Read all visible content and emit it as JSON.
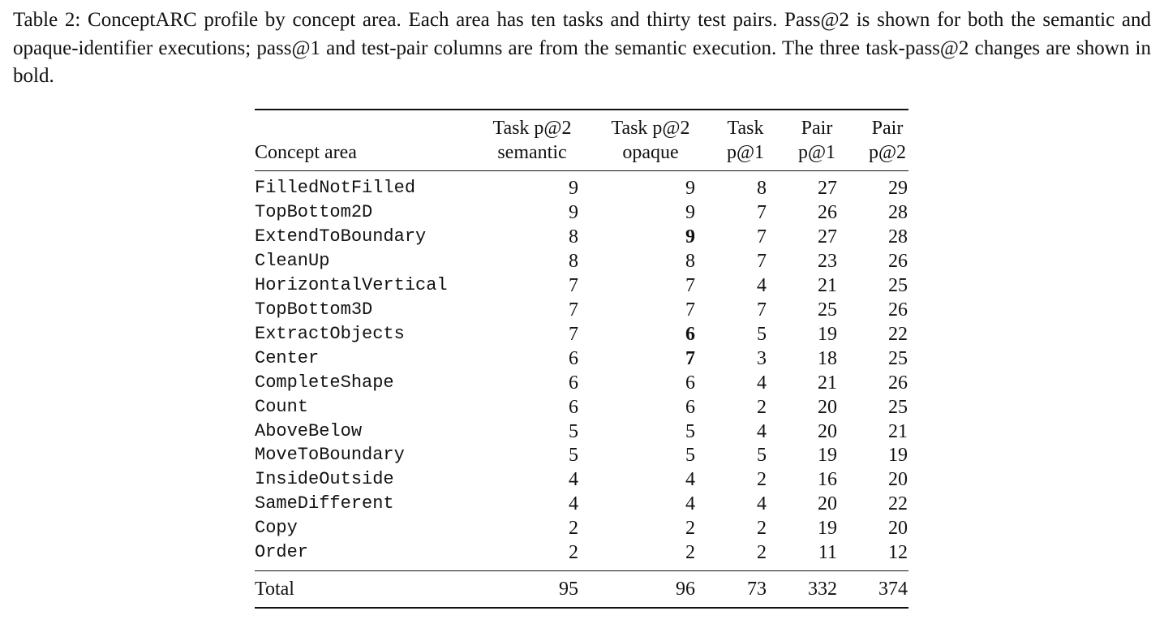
{
  "caption": "Table 2: ConceptARC profile by concept area. Each area has ten tasks and thirty test pairs. Pass@2 is shown for both the semantic and opaque-identifier executions; pass@1 and test-pair columns are from the semantic execution. The three task-pass@2 changes are shown in bold.",
  "table": {
    "header": [
      [
        "Concept area"
      ],
      [
        "Task p@2",
        "semantic"
      ],
      [
        "Task p@2",
        "opaque"
      ],
      [
        "Task",
        "p@1"
      ],
      [
        "Pair",
        "p@1"
      ],
      [
        "Pair",
        "p@2"
      ]
    ],
    "rows": [
      [
        "FilledNotFilled",
        9,
        9,
        8,
        27,
        29
      ],
      [
        "TopBottom2D",
        9,
        9,
        7,
        26,
        28
      ],
      [
        "ExtendToBoundary",
        8,
        {
          "value": 9,
          "bold": true
        },
        7,
        27,
        28
      ],
      [
        "CleanUp",
        8,
        8,
        7,
        23,
        26
      ],
      [
        "HorizontalVertical",
        7,
        7,
        4,
        21,
        25
      ],
      [
        "TopBottom3D",
        7,
        7,
        7,
        25,
        26
      ],
      [
        "ExtractObjects",
        7,
        {
          "value": 6,
          "bold": true
        },
        5,
        19,
        22
      ],
      [
        "Center",
        6,
        {
          "value": 7,
          "bold": true
        },
        3,
        18,
        25
      ],
      [
        "CompleteShape",
        6,
        6,
        4,
        21,
        26
      ],
      [
        "Count",
        6,
        6,
        2,
        20,
        25
      ],
      [
        "AboveBelow",
        5,
        5,
        4,
        20,
        21
      ],
      [
        "MoveToBoundary",
        5,
        5,
        5,
        19,
        19
      ],
      [
        "InsideOutside",
        4,
        4,
        2,
        16,
        20
      ],
      [
        "SameDifferent",
        4,
        4,
        4,
        20,
        22
      ],
      [
        "Copy",
        2,
        2,
        2,
        19,
        20
      ],
      [
        "Order",
        2,
        2,
        2,
        11,
        12
      ]
    ],
    "total": [
      "Total",
      95,
      96,
      73,
      332,
      374
    ]
  }
}
